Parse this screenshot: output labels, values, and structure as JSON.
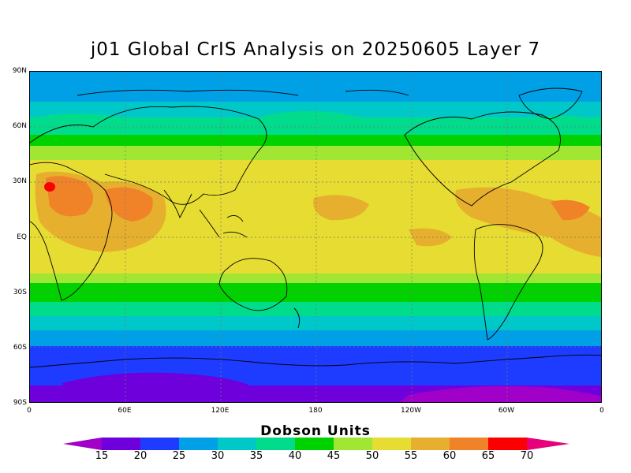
{
  "title": "j01 Global CrIS Analysis on 20250605 Layer 7",
  "y_axis_labels": [
    "90N",
    "60N",
    "30N",
    "EQ",
    "30S",
    "60S",
    "90S"
  ],
  "x_axis_labels": [
    "0",
    "60E",
    "120E",
    "180",
    "120W",
    "60W",
    "0"
  ],
  "colorbar": {
    "title": "Dobson Units",
    "ticks": [
      "15",
      "20",
      "25",
      "30",
      "35",
      "40",
      "45",
      "50",
      "55",
      "60",
      "65",
      "70"
    ],
    "colors": [
      "#a000c8",
      "#6e00dc",
      "#1e3cff",
      "#00a0e6",
      "#00c8c8",
      "#00dc8c",
      "#00d200",
      "#a0e632",
      "#e6dc32",
      "#e6af2d",
      "#f08228",
      "#fa0000",
      "#e6007a"
    ]
  },
  "map": {
    "projection": "cylindrical equidistant",
    "grid": "dotted",
    "value_units": "Dobson Units"
  }
}
